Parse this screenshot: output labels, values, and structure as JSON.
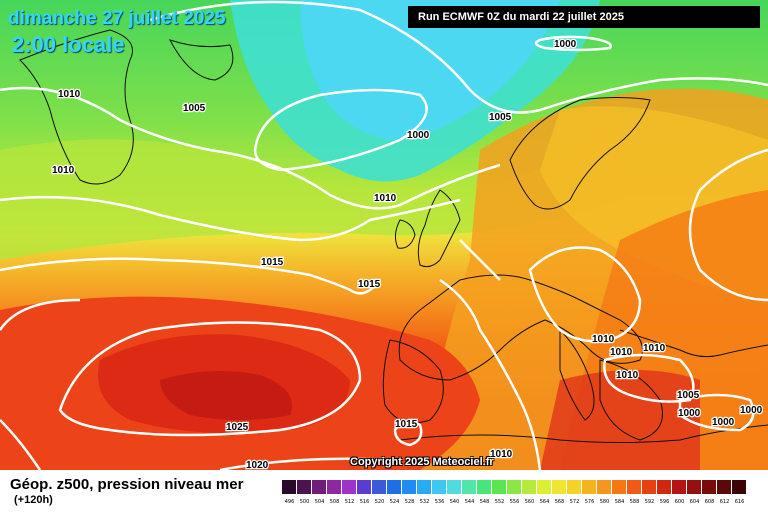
{
  "header": {
    "date": "dimanche 27 juillet 2025",
    "time": "2:00 locale",
    "run": "Run ECMWF 0Z du mardi 22 juillet 2025"
  },
  "map": {
    "copyright": "Copyright 2025 Meteociel.fr",
    "isobar_labels": [
      "1000",
      "1000",
      "1005",
      "1005",
      "1010",
      "1010",
      "1010",
      "1015",
      "1015",
      "1015",
      "1020",
      "1025",
      "1010",
      "1010",
      "1010",
      "1010",
      "1010",
      "1005",
      "1000",
      "1000",
      "1000"
    ]
  },
  "footer": {
    "title": "Géop. z500, pression niveau mer",
    "lead": "(+120h)"
  },
  "legend": {
    "labels": [
      "496",
      "500",
      "504",
      "508",
      "512",
      "516",
      "520",
      "524",
      "528",
      "532",
      "536",
      "540",
      "544",
      "548",
      "552",
      "556",
      "560",
      "564",
      "568",
      "572",
      "576",
      "580",
      "584",
      "588",
      "592",
      "596",
      "600",
      "604",
      "608",
      "612",
      "616"
    ],
    "colors": [
      "#2a0a2a",
      "#4b1450",
      "#6e1e78",
      "#8e28a0",
      "#a032c8",
      "#5a3cd2",
      "#3c5ad8",
      "#1e6ee6",
      "#1e8cf0",
      "#28aaf0",
      "#3cc8f0",
      "#50dcdc",
      "#50e6aa",
      "#46e678",
      "#5ae650",
      "#8ce646",
      "#b4eb3c",
      "#dcf032",
      "#f0e632",
      "#f5d228",
      "#f5b41e",
      "#f5961e",
      "#f57814",
      "#f05a14",
      "#e6410f",
      "#d2280f",
      "#b41414",
      "#961010",
      "#780c0c",
      "#5a0808",
      "#3c0404"
    ]
  }
}
